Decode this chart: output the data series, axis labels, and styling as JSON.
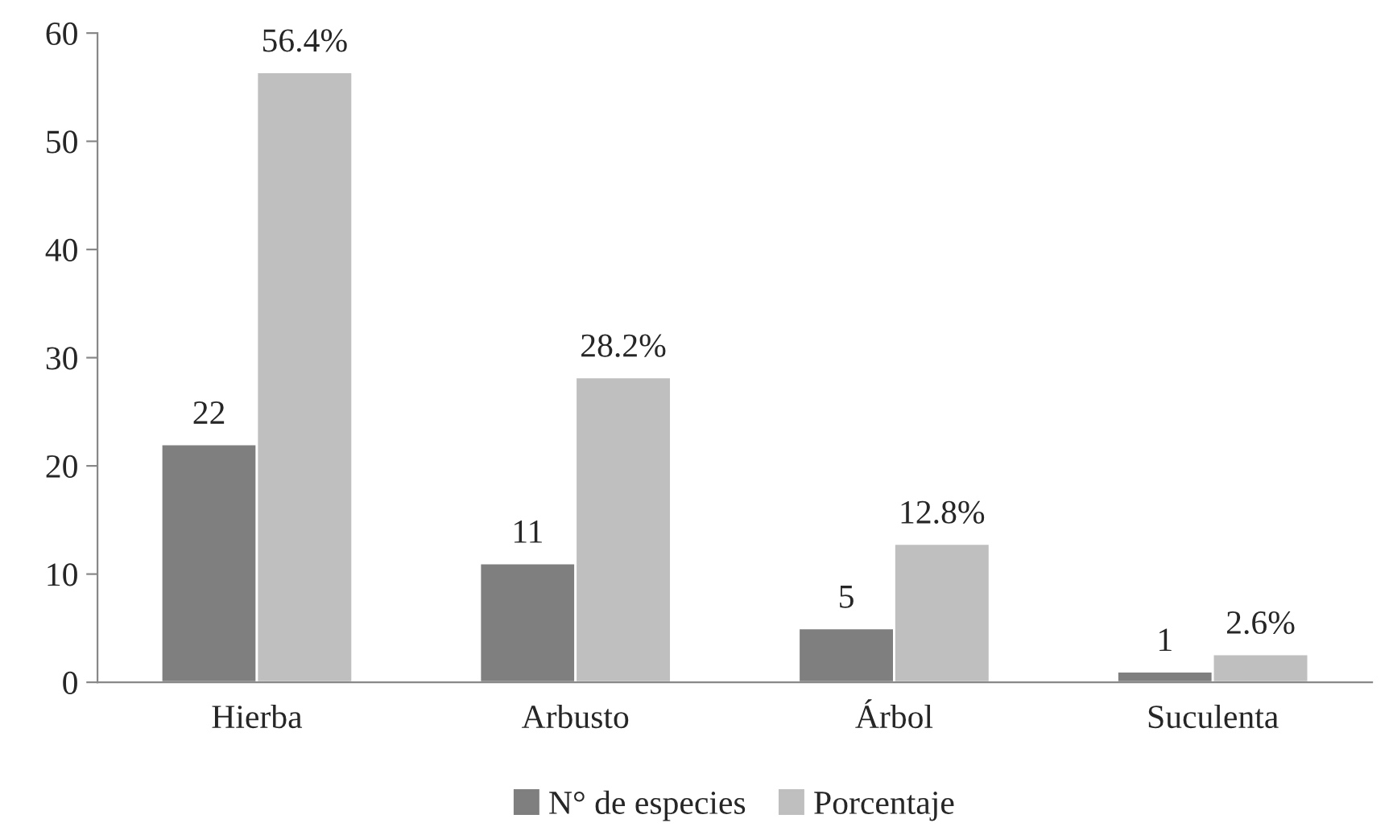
{
  "chart_data": {
    "type": "bar",
    "categories": [
      "Hierba",
      "Arbusto",
      "Árbol",
      "Suculenta"
    ],
    "series": [
      {
        "name": "N° de especies",
        "color": "#7f7f7f",
        "values": [
          22,
          11,
          5,
          1
        ],
        "value_labels": [
          "22",
          "11",
          "5",
          "1"
        ]
      },
      {
        "name": "Porcentaje",
        "color": "#bfbfbf",
        "values": [
          56.4,
          28.2,
          12.8,
          2.6
        ],
        "value_labels": [
          "56.4%",
          "28.2%",
          "12.8%",
          "2.6%"
        ]
      }
    ],
    "ylim": [
      0,
      60
    ],
    "yticks": [
      0,
      10,
      20,
      30,
      40,
      50,
      60
    ],
    "grid": false,
    "legend": "bottom"
  }
}
